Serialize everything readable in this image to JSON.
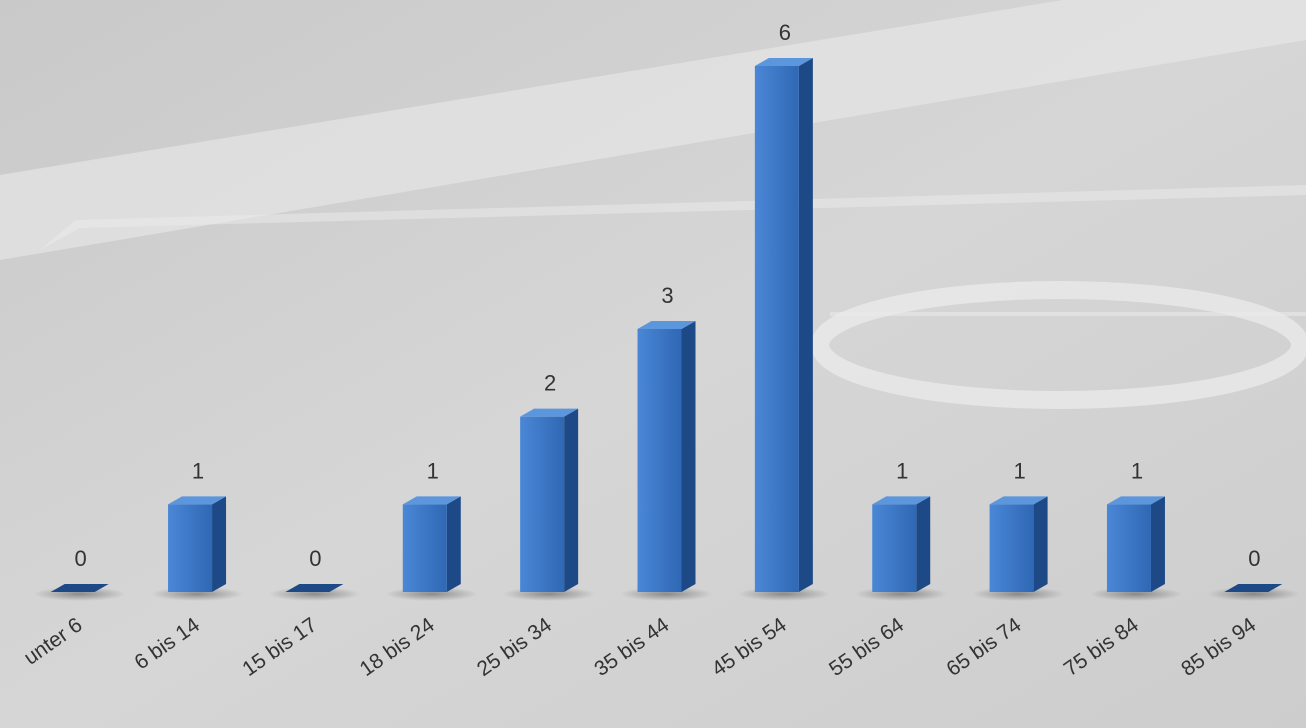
{
  "chart_data": {
    "type": "bar",
    "title": "",
    "xlabel": "",
    "ylabel": "",
    "categories": [
      "unter 6",
      "6 bis 14",
      "15 bis 17",
      "18 bis 24",
      "25 bis 34",
      "35 bis 44",
      "45 bis 54",
      "55 bis 64",
      "65 bis 74",
      "75 bis 84",
      "85 bis 94"
    ],
    "values": [
      0,
      1,
      0,
      1,
      2,
      3,
      6,
      1,
      1,
      1,
      0
    ],
    "ylim": [
      0,
      6
    ],
    "grid": false,
    "legend": "none",
    "bar_style": "3d",
    "colors": {
      "bar_front": "#3a76c4",
      "bar_front_light": "#4a87d6",
      "bar_side": "#1d4a86",
      "bar_top": "#5c96dd",
      "label_text": "#333333",
      "background": "#d3d3d3"
    }
  }
}
